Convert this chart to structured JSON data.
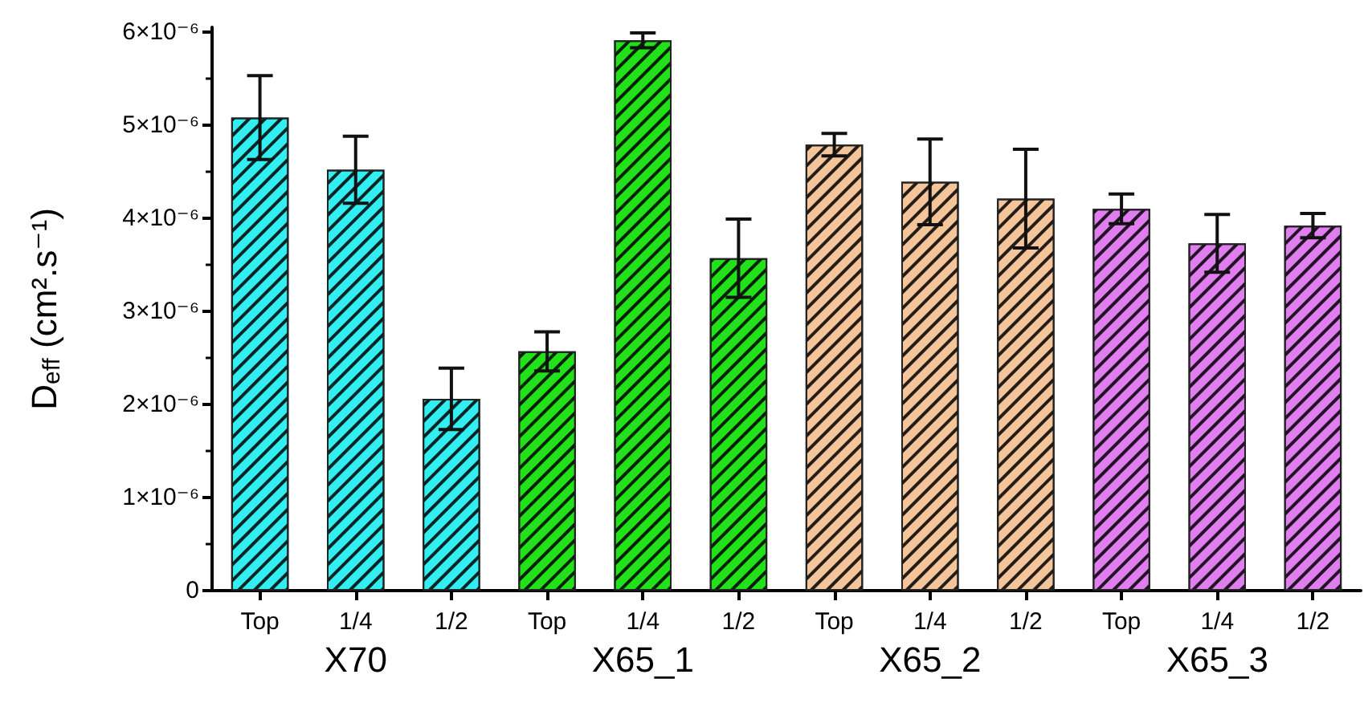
{
  "chart_data": {
    "type": "bar",
    "ylabel": "D$_{eff}$ (cm².s⁻¹)",
    "categories": [
      "Top",
      "1/4",
      "1/2",
      "Top",
      "1/4",
      "1/2",
      "Top",
      "1/4",
      "1/2",
      "Top",
      "1/4",
      "1/2"
    ],
    "series": [
      {
        "name": "X70",
        "color": "#33eef0",
        "values": [
          5.08e-06,
          4.52e-06,
          2.06e-06,
          null,
          null,
          null,
          null,
          null,
          null,
          null,
          null,
          null
        ],
        "errors": [
          4.5e-07,
          3.6e-07,
          3.3e-07,
          null,
          null,
          null,
          null,
          null,
          null,
          null,
          null,
          null
        ]
      },
      {
        "name": "X65_1",
        "color": "#22e01a",
        "values": [
          null,
          null,
          null,
          2.57e-06,
          5.91e-06,
          3.57e-06,
          null,
          null,
          null,
          null,
          null,
          null
        ],
        "errors": [
          null,
          null,
          null,
          2.1e-07,
          8e-08,
          4.2e-07,
          null,
          null,
          null,
          null,
          null,
          null
        ]
      },
      {
        "name": "X65_2",
        "color": "#f4c49a",
        "values": [
          null,
          null,
          null,
          null,
          null,
          null,
          4.79e-06,
          4.39e-06,
          4.21e-06,
          null,
          null,
          null
        ],
        "errors": [
          null,
          null,
          null,
          null,
          null,
          null,
          1.2e-07,
          4.6e-07,
          5.3e-07,
          null,
          null,
          null
        ]
      },
      {
        "name": "X65_3",
        "color": "#e07ef0",
        "values": [
          null,
          null,
          null,
          null,
          null,
          null,
          null,
          null,
          null,
          4.1e-06,
          3.73e-06,
          3.92e-06
        ],
        "errors": [
          null,
          null,
          null,
          null,
          null,
          null,
          null,
          null,
          null,
          1.6e-07,
          3.1e-07,
          1.3e-07
        ]
      }
    ],
    "ylim": [
      0,
      6.05e-06
    ],
    "yticks": [
      {
        "value": 0,
        "label": "0"
      },
      {
        "value": 1e-06,
        "label": "1×10⁻⁶"
      },
      {
        "value": 2e-06,
        "label": "2×10⁻⁶"
      },
      {
        "value": 3e-06,
        "label": "3×10⁻⁶"
      },
      {
        "value": 4e-06,
        "label": "4×10⁻⁶"
      },
      {
        "value": 5e-06,
        "label": "5×10⁻⁶"
      },
      {
        "value": 6e-06,
        "label": "6×10⁻⁶"
      }
    ],
    "grid": false,
    "legend": false
  }
}
